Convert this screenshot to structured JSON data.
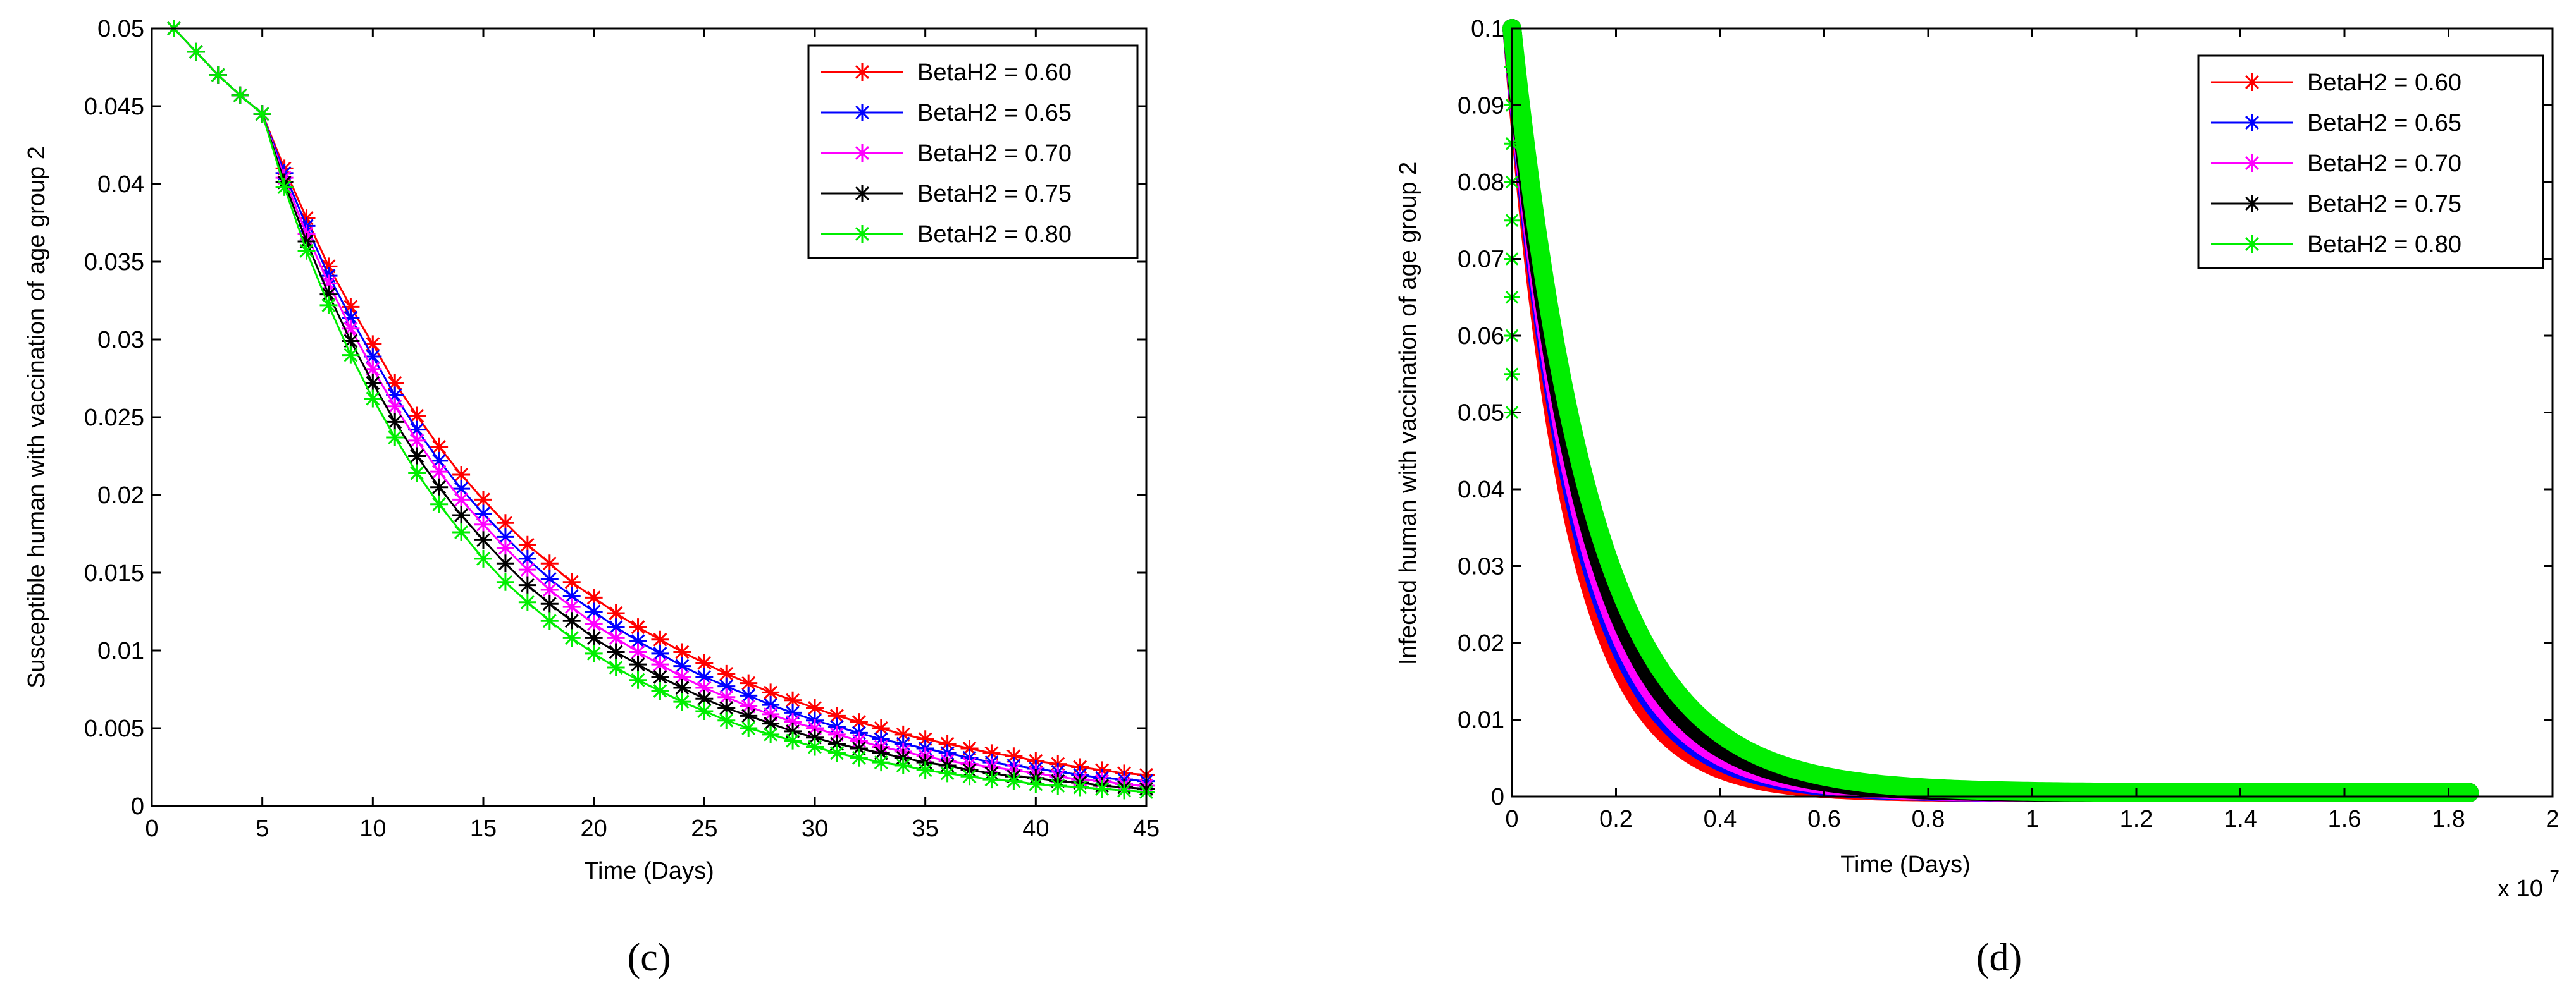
{
  "chart_data": [
    {
      "type": "line",
      "panel_label": "(c)",
      "xlabel": "Time (Days)",
      "ylabel": "Susceptible human with vaccination of age group 2",
      "xlim": [
        0,
        45
      ],
      "ylim": [
        0,
        0.05
      ],
      "xticks": [
        "0",
        "5",
        "10",
        "15",
        "20",
        "25",
        "30",
        "35",
        "40",
        "45"
      ],
      "yticks": [
        "0",
        "0.005",
        "0.01",
        "0.015",
        "0.02",
        "0.025",
        "0.03",
        "0.035",
        "0.04",
        "0.045",
        "0.05"
      ],
      "legend_position": "top-right",
      "x": [
        1,
        2,
        3,
        4,
        5,
        6,
        7,
        8,
        9,
        10,
        11,
        12,
        13,
        14,
        15,
        16,
        17,
        18,
        19,
        20,
        21,
        22,
        23,
        24,
        25,
        26,
        27,
        28,
        29,
        30,
        31,
        32,
        33,
        34,
        35,
        36,
        37,
        38,
        39,
        40,
        41,
        42,
        43,
        44,
        45
      ],
      "series": [
        {
          "name": "BetaH2 = 0.60",
          "color": "#ff0000",
          "values": [
            0.05,
            0.0485,
            0.047,
            0.0457,
            0.0445,
            0.041,
            0.0378,
            0.0347,
            0.0321,
            0.0297,
            0.0272,
            0.0251,
            0.0231,
            0.0213,
            0.0197,
            0.0182,
            0.0168,
            0.0156,
            0.0144,
            0.0134,
            0.0124,
            0.0115,
            0.0107,
            0.0099,
            0.0092,
            0.0085,
            0.0079,
            0.0073,
            0.0068,
            0.0063,
            0.0058,
            0.0054,
            0.005,
            0.0046,
            0.0043,
            0.004,
            0.0037,
            0.0034,
            0.0032,
            0.0029,
            0.0027,
            0.0025,
            0.0023,
            0.0021,
            0.002
          ]
        },
        {
          "name": "BetaH2 = 0.65",
          "color": "#0000ff",
          "values": [
            0.05,
            0.0485,
            0.047,
            0.0457,
            0.0445,
            0.0407,
            0.0373,
            0.0341,
            0.0314,
            0.0289,
            0.0264,
            0.0242,
            0.0222,
            0.0204,
            0.0188,
            0.0173,
            0.0159,
            0.0146,
            0.0135,
            0.0125,
            0.0115,
            0.0106,
            0.0098,
            0.009,
            0.0083,
            0.0077,
            0.0071,
            0.0065,
            0.006,
            0.0055,
            0.0051,
            0.0047,
            0.0043,
            0.004,
            0.0037,
            0.0034,
            0.0031,
            0.0028,
            0.0026,
            0.0024,
            0.0022,
            0.002,
            0.0018,
            0.0017,
            0.0016
          ]
        },
        {
          "name": "BetaH2 = 0.70",
          "color": "#ff00ff",
          "values": [
            0.05,
            0.0485,
            0.047,
            0.0457,
            0.0445,
            0.0404,
            0.0368,
            0.0336,
            0.0307,
            0.0281,
            0.0257,
            0.0235,
            0.0215,
            0.0197,
            0.0181,
            0.0166,
            0.0152,
            0.0139,
            0.0128,
            0.0117,
            0.0108,
            0.0099,
            0.0091,
            0.0083,
            0.0076,
            0.007,
            0.0064,
            0.0059,
            0.0054,
            0.005,
            0.0046,
            0.0042,
            0.0038,
            0.0035,
            0.0032,
            0.0029,
            0.0027,
            0.0025,
            0.0023,
            0.0021,
            0.0019,
            0.0017,
            0.0016,
            0.0014,
            0.0013
          ]
        },
        {
          "name": "BetaH2 = 0.75",
          "color": "#000000",
          "values": [
            0.05,
            0.0485,
            0.047,
            0.0457,
            0.0445,
            0.0401,
            0.0363,
            0.0329,
            0.0299,
            0.0272,
            0.0247,
            0.0225,
            0.0205,
            0.0187,
            0.0171,
            0.0156,
            0.0142,
            0.013,
            0.0119,
            0.0108,
            0.0099,
            0.0091,
            0.0083,
            0.0076,
            0.0069,
            0.0063,
            0.0058,
            0.0053,
            0.0048,
            0.0044,
            0.004,
            0.0037,
            0.0034,
            0.0031,
            0.0028,
            0.0026,
            0.0023,
            0.0021,
            0.0019,
            0.0018,
            0.0016,
            0.0015,
            0.0013,
            0.0012,
            0.0011
          ]
        },
        {
          "name": "BetaH2 = 0.80",
          "color": "#00ee00",
          "values": [
            0.05,
            0.0485,
            0.047,
            0.0457,
            0.0445,
            0.0398,
            0.0357,
            0.0322,
            0.029,
            0.0262,
            0.0237,
            0.0214,
            0.0194,
            0.0176,
            0.0159,
            0.0144,
            0.0131,
            0.0119,
            0.0108,
            0.0098,
            0.0089,
            0.0081,
            0.0074,
            0.0067,
            0.0061,
            0.0055,
            0.005,
            0.0046,
            0.0042,
            0.0038,
            0.0034,
            0.0031,
            0.0028,
            0.0026,
            0.0023,
            0.0021,
            0.0019,
            0.0017,
            0.0016,
            0.0014,
            0.0013,
            0.0012,
            0.0011,
            0.001,
            0.0009
          ]
        }
      ]
    },
    {
      "type": "line",
      "panel_label": "(d)",
      "xlabel": "Time (Days)",
      "ylabel": "Infected human with vaccination of age group 2",
      "x_multiplier": "x 10",
      "x_multiplier_exponent": "7",
      "xlim": [
        0,
        2
      ],
      "ylim": [
        0,
        0.1
      ],
      "xticks": [
        "0",
        "0.2",
        "0.4",
        "0.6",
        "0.8",
        "1",
        "1.2",
        "1.4",
        "1.6",
        "1.8",
        "2"
      ],
      "yticks": [
        "0",
        "0.01",
        "0.02",
        "0.03",
        "0.04",
        "0.05",
        "0.06",
        "0.07",
        "0.08",
        "0.09",
        "0.1"
      ],
      "legend_position": "top-right",
      "x_end": 1.84,
      "initial_value": 0.1,
      "plateau": 0.0005,
      "series": [
        {
          "name": "BetaH2 = 0.60",
          "color": "#ff0000",
          "decay_rate": 8.7
        },
        {
          "name": "BetaH2 = 0.65",
          "color": "#0000ff",
          "decay_rate": 8.0
        },
        {
          "name": "BetaH2 = 0.70",
          "color": "#ff00ff",
          "decay_rate": 7.6
        },
        {
          "name": "BetaH2 = 0.75",
          "color": "#000000",
          "decay_rate": 7.1
        },
        {
          "name": "BetaH2 = 0.80",
          "color": "#00ee00",
          "decay_rate": 6.4
        }
      ]
    }
  ]
}
